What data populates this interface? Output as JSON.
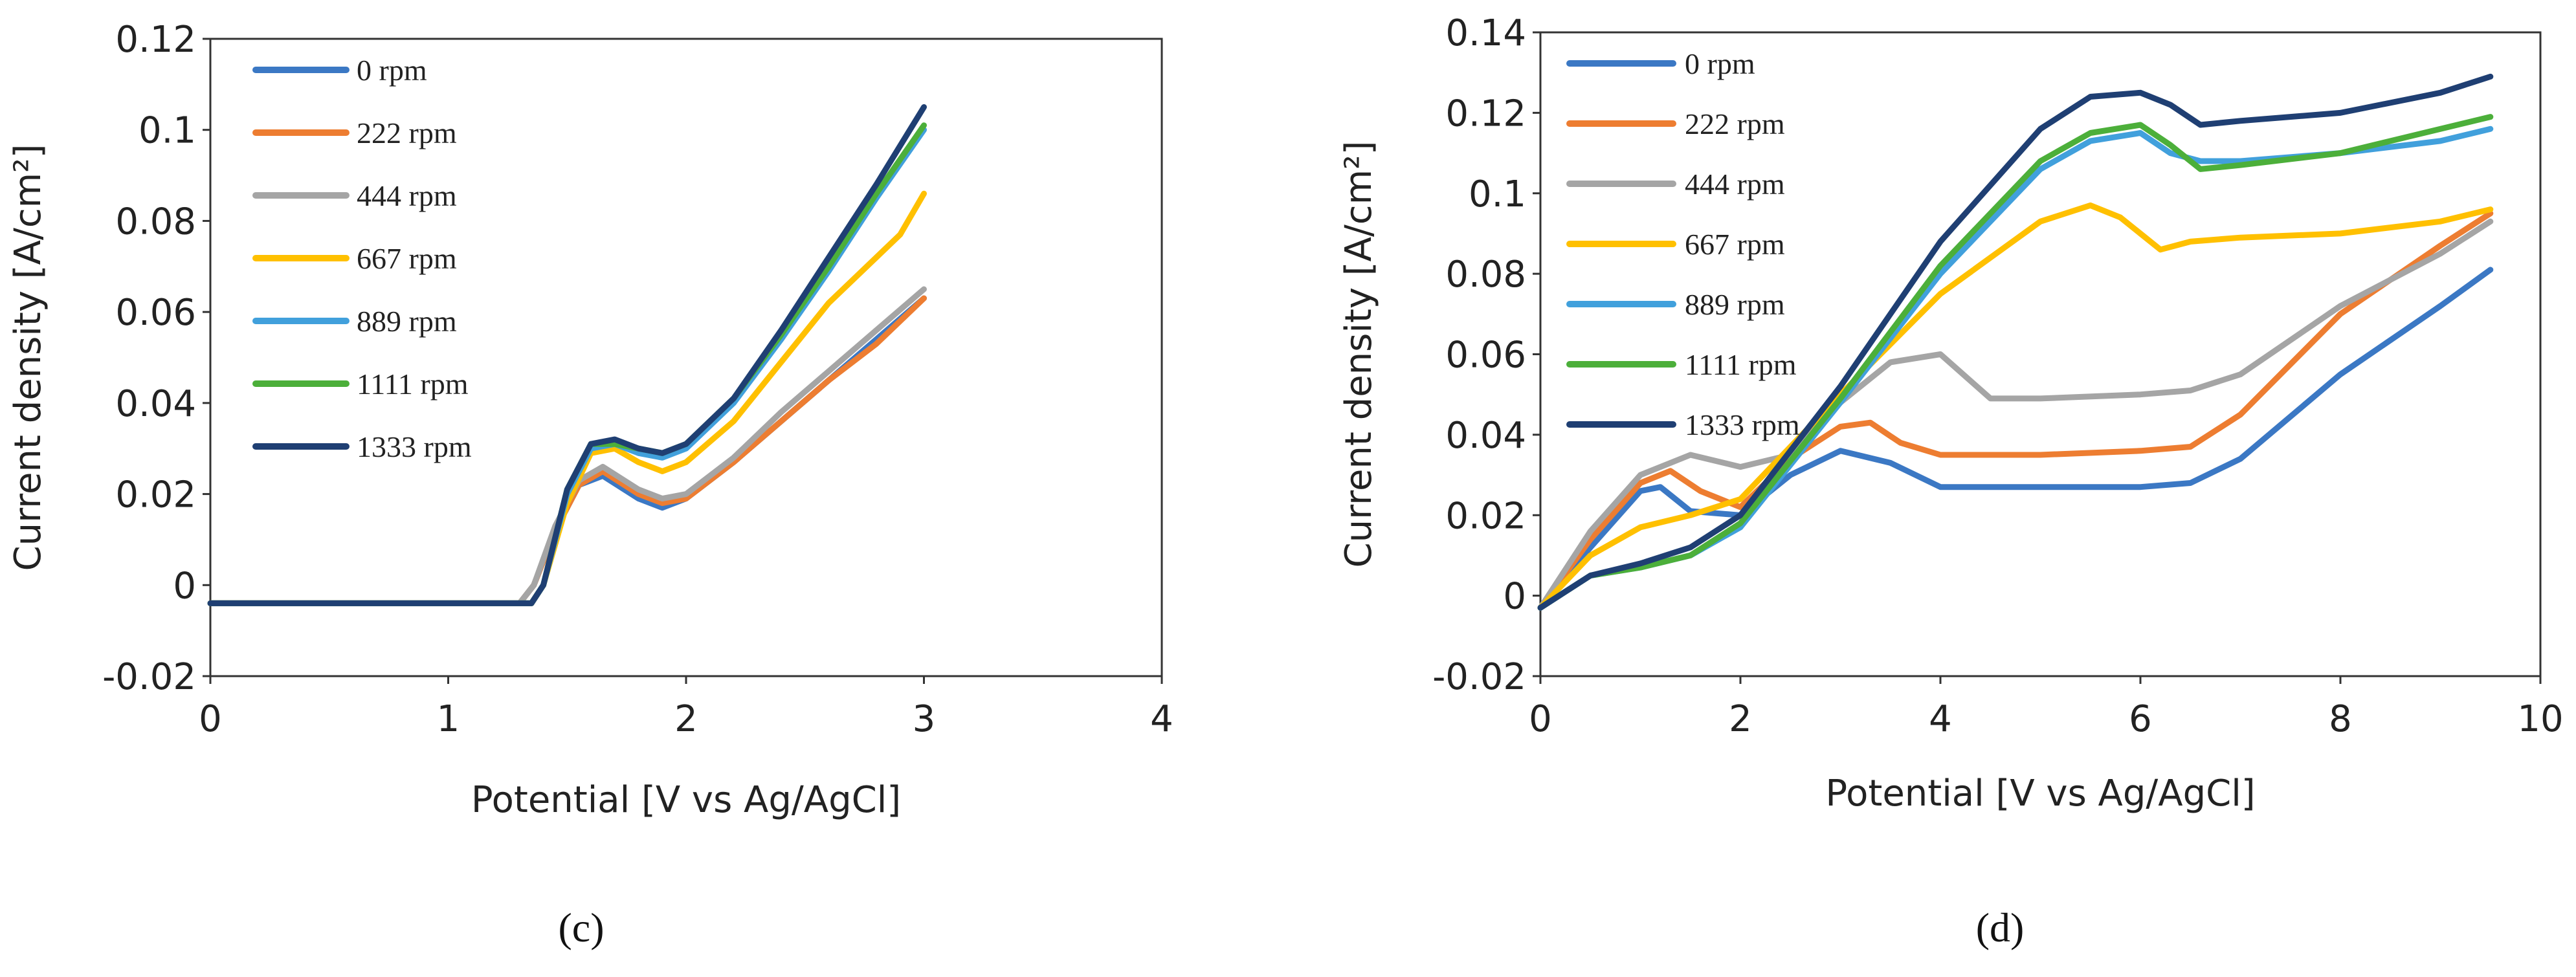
{
  "chart_data": [
    {
      "type": "line",
      "panel": "c",
      "caption": "(c)",
      "title": "",
      "xlabel": "Potential [V vs Ag/AgCl]",
      "ylabel": "Current density [A/cm²]",
      "xlim": [
        0,
        4
      ],
      "ylim": [
        -0.02,
        0.12
      ],
      "xticks": [
        0,
        1,
        2,
        3,
        4
      ],
      "yticks": [
        -0.02,
        0,
        0.02,
        0.04,
        0.06,
        0.08,
        0.1,
        0.12
      ],
      "xtick_labels": [
        "0",
        "1",
        "2",
        "3",
        "4"
      ],
      "ytick_labels": [
        "-0.02",
        "0",
        "0.02",
        "0.04",
        "0.06",
        "0.08",
        "0.1",
        "0.12"
      ],
      "grid": false,
      "legend_position": "top-left",
      "series": [
        {
          "name": "0 rpm",
          "color": "#3b78c4",
          "x": [
            0,
            1.3,
            1.36,
            1.45,
            1.55,
            1.65,
            1.8,
            1.9,
            2.0,
            2.2,
            2.4,
            2.6,
            2.8,
            3.0
          ],
          "y": [
            -0.004,
            -0.004,
            0,
            0.012,
            0.022,
            0.024,
            0.019,
            0.017,
            0.019,
            0.027,
            0.036,
            0.045,
            0.054,
            0.063
          ]
        },
        {
          "name": "222 rpm",
          "color": "#ed7d31",
          "x": [
            0,
            1.3,
            1.36,
            1.45,
            1.55,
            1.65,
            1.8,
            1.9,
            2.0,
            2.2,
            2.4,
            2.6,
            2.8,
            3.0
          ],
          "y": [
            -0.004,
            -0.004,
            0,
            0.012,
            0.022,
            0.025,
            0.02,
            0.018,
            0.019,
            0.027,
            0.036,
            0.045,
            0.053,
            0.063
          ]
        },
        {
          "name": "444 rpm",
          "color": "#a5a5a5",
          "x": [
            0,
            1.3,
            1.36,
            1.45,
            1.55,
            1.65,
            1.8,
            1.9,
            2.0,
            2.2,
            2.4,
            2.6,
            2.8,
            3.0
          ],
          "y": [
            -0.004,
            -0.004,
            0,
            0.013,
            0.023,
            0.026,
            0.021,
            0.019,
            0.02,
            0.028,
            0.038,
            0.047,
            0.056,
            0.065
          ]
        },
        {
          "name": "667 rpm",
          "color": "#ffc000",
          "x": [
            0,
            1.35,
            1.4,
            1.5,
            1.6,
            1.7,
            1.8,
            1.9,
            2.0,
            2.2,
            2.4,
            2.6,
            2.8,
            2.9,
            3.0
          ],
          "y": [
            -0.004,
            -0.004,
            0,
            0.018,
            0.029,
            0.03,
            0.027,
            0.025,
            0.027,
            0.036,
            0.049,
            0.062,
            0.072,
            0.077,
            0.086
          ]
        },
        {
          "name": "889 rpm",
          "color": "#41a0dc",
          "x": [
            0,
            1.35,
            1.4,
            1.5,
            1.6,
            1.7,
            1.8,
            1.9,
            2.0,
            2.2,
            2.4,
            2.6,
            2.8,
            3.0
          ],
          "y": [
            -0.004,
            -0.004,
            0,
            0.02,
            0.03,
            0.031,
            0.029,
            0.028,
            0.03,
            0.04,
            0.054,
            0.069,
            0.085,
            0.1
          ]
        },
        {
          "name": "1111 rpm",
          "color": "#4caf3a",
          "x": [
            0,
            1.35,
            1.4,
            1.5,
            1.6,
            1.7,
            1.8,
            1.9,
            2.0,
            2.2,
            2.4,
            2.6,
            2.8,
            3.0
          ],
          "y": [
            -0.004,
            -0.004,
            0,
            0.021,
            0.031,
            0.031,
            0.03,
            0.029,
            0.031,
            0.041,
            0.055,
            0.07,
            0.086,
            0.101
          ]
        },
        {
          "name": "1333 rpm",
          "color": "#1f3f73",
          "x": [
            0,
            1.35,
            1.4,
            1.5,
            1.6,
            1.7,
            1.8,
            1.9,
            2.0,
            2.2,
            2.4,
            2.6,
            2.8,
            3.0
          ],
          "y": [
            -0.004,
            -0.004,
            0,
            0.021,
            0.031,
            0.032,
            0.03,
            0.029,
            0.031,
            0.041,
            0.056,
            0.072,
            0.088,
            0.105
          ]
        }
      ]
    },
    {
      "type": "line",
      "panel": "d",
      "caption": "(d)",
      "title": "",
      "xlabel": "Potential [V vs Ag/AgCl]",
      "ylabel": "Current density [A/cm²]",
      "xlim": [
        0,
        10
      ],
      "ylim": [
        -0.02,
        0.14
      ],
      "xticks": [
        0,
        2,
        4,
        6,
        8,
        10
      ],
      "yticks": [
        -0.02,
        0,
        0.02,
        0.04,
        0.06,
        0.08,
        0.1,
        0.12,
        0.14
      ],
      "xtick_labels": [
        "0",
        "2",
        "4",
        "6",
        "8",
        "10"
      ],
      "ytick_labels": [
        "-0.02",
        "0",
        "0.02",
        "0.04",
        "0.06",
        "0.08",
        "0.1",
        "0.12",
        "0.14"
      ],
      "grid": false,
      "legend_position": "top-left",
      "series": [
        {
          "name": "0 rpm",
          "color": "#3b78c4",
          "x": [
            0,
            0.5,
            1.0,
            1.2,
            1.5,
            2.0,
            2.5,
            3.0,
            3.5,
            4.0,
            5.0,
            6.0,
            6.5,
            7.0,
            8.0,
            9.0,
            9.5
          ],
          "y": [
            -0.003,
            0.012,
            0.026,
            0.027,
            0.021,
            0.02,
            0.03,
            0.036,
            0.033,
            0.027,
            0.027,
            0.027,
            0.028,
            0.034,
            0.055,
            0.072,
            0.081
          ]
        },
        {
          "name": "222 rpm",
          "color": "#ed7d31",
          "x": [
            0,
            0.5,
            1.0,
            1.3,
            1.6,
            2.0,
            2.5,
            3.0,
            3.3,
            3.6,
            4.0,
            5.0,
            6.0,
            6.5,
            7.0,
            8.0,
            9.0,
            9.5
          ],
          "y": [
            -0.003,
            0.014,
            0.028,
            0.031,
            0.026,
            0.022,
            0.034,
            0.042,
            0.043,
            0.038,
            0.035,
            0.035,
            0.036,
            0.037,
            0.045,
            0.07,
            0.087,
            0.095
          ]
        },
        {
          "name": "444 rpm",
          "color": "#a5a5a5",
          "x": [
            0,
            0.5,
            1.0,
            1.5,
            2.0,
            2.5,
            3.0,
            3.5,
            4.0,
            4.5,
            5.0,
            6.0,
            6.5,
            7.0,
            8.0,
            9.0,
            9.5
          ],
          "y": [
            -0.003,
            0.016,
            0.03,
            0.035,
            0.032,
            0.035,
            0.048,
            0.058,
            0.06,
            0.049,
            0.049,
            0.05,
            0.051,
            0.055,
            0.072,
            0.085,
            0.093
          ]
        },
        {
          "name": "667 rpm",
          "color": "#ffc000",
          "x": [
            0,
            0.5,
            1.0,
            1.5,
            2.0,
            3.0,
            4.0,
            5.0,
            5.5,
            5.8,
            6.2,
            6.5,
            7.0,
            8.0,
            9.0,
            9.5
          ],
          "y": [
            -0.003,
            0.01,
            0.017,
            0.02,
            0.024,
            0.05,
            0.075,
            0.093,
            0.097,
            0.094,
            0.086,
            0.088,
            0.089,
            0.09,
            0.093,
            0.096
          ]
        },
        {
          "name": "889 rpm",
          "color": "#41a0dc",
          "x": [
            0,
            0.5,
            1.0,
            1.5,
            2.0,
            3.0,
            4.0,
            5.0,
            5.5,
            6.0,
            6.3,
            6.6,
            7.0,
            8.0,
            9.0,
            9.5
          ],
          "y": [
            -0.003,
            0.005,
            0.007,
            0.01,
            0.017,
            0.048,
            0.08,
            0.106,
            0.113,
            0.115,
            0.11,
            0.108,
            0.108,
            0.11,
            0.113,
            0.116
          ]
        },
        {
          "name": "1111 rpm",
          "color": "#4caf3a",
          "x": [
            0,
            0.5,
            1.0,
            1.5,
            2.0,
            3.0,
            4.0,
            5.0,
            5.5,
            6.0,
            6.3,
            6.6,
            7.0,
            8.0,
            9.0,
            9.5
          ],
          "y": [
            -0.003,
            0.005,
            0.007,
            0.01,
            0.018,
            0.049,
            0.082,
            0.108,
            0.115,
            0.117,
            0.112,
            0.106,
            0.107,
            0.11,
            0.116,
            0.119
          ]
        },
        {
          "name": "1333 rpm",
          "color": "#1f3f73",
          "x": [
            0,
            0.5,
            1.0,
            1.5,
            2.0,
            3.0,
            4.0,
            5.0,
            5.5,
            6.0,
            6.3,
            6.6,
            7.0,
            8.0,
            9.0,
            9.5
          ],
          "y": [
            -0.003,
            0.005,
            0.008,
            0.012,
            0.02,
            0.052,
            0.088,
            0.116,
            0.124,
            0.125,
            0.122,
            0.117,
            0.118,
            0.12,
            0.125,
            0.129
          ]
        }
      ]
    }
  ]
}
